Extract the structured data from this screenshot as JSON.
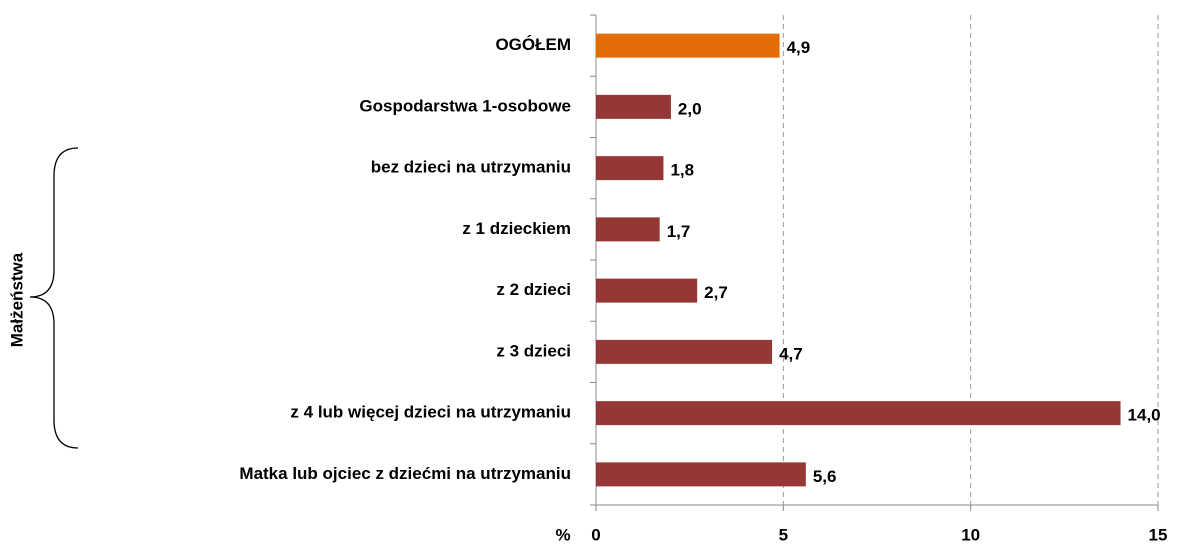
{
  "chart_data": {
    "type": "hbar",
    "categories": [
      "OGÓŁEM",
      "Gospodarstwa 1-osobowe",
      "bez dzieci na utrzymaniu",
      "z 1 dzieckiem",
      "z 2 dzieci",
      "z 3 dzieci",
      "z 4 lub więcej dzieci na utrzymaniu",
      "Matka lub ojciec z dziećmi na utrzymaniu"
    ],
    "values": [
      4.9,
      2.0,
      1.8,
      1.7,
      2.7,
      4.7,
      14.0,
      5.6
    ],
    "value_labels": [
      "4,9",
      "2,0",
      "1,8",
      "1,7",
      "2,7",
      "4,7",
      "14,0",
      "5,6"
    ],
    "colors": [
      "#e36c09",
      "#953735",
      "#953735",
      "#953735",
      "#953735",
      "#953735",
      "#953735",
      "#953735"
    ],
    "xlim": [
      0,
      15
    ],
    "xticks": [
      0,
      5,
      10,
      15
    ],
    "grid": true,
    "xlabel": "%",
    "annotation": "Małżeństwa"
  }
}
